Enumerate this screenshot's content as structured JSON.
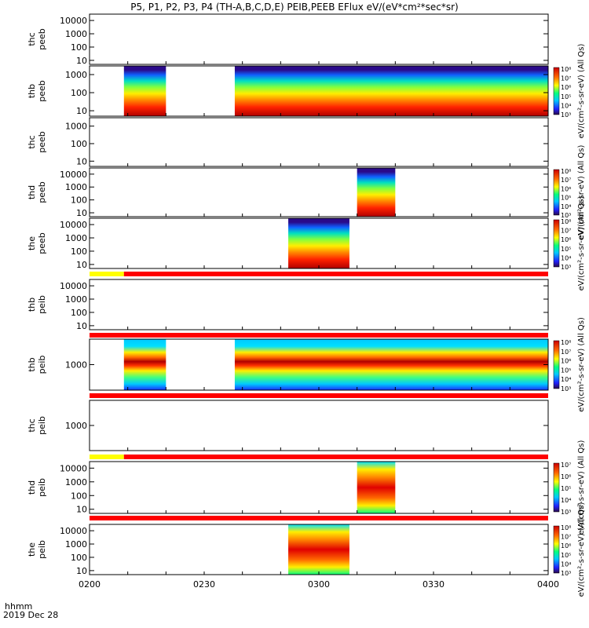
{
  "chart_data": {
    "type": "heatmap",
    "title": "P5, P1, P2, P3, P4 (TH-A,B,C,D,E) PEIB,PEEB EFlux eV/(eV*cm²*sec*sr)",
    "x_axis": {
      "label_line1": "hhmm",
      "label_line2": "2019 Dec 28",
      "range": [
        "0200",
        "0400"
      ],
      "ticks": [
        "0200",
        "0230",
        "0300",
        "0330",
        "0400"
      ]
    },
    "panels": [
      {
        "probe_label": "thc",
        "product_label": "peeb",
        "y_scale": "log",
        "y_ticks": [
          "10",
          "100",
          "1000",
          "10000"
        ],
        "data_intervals": [],
        "colorbar": null,
        "flag_bar": null
      },
      {
        "probe_label": "thb",
        "product_label": "peeb",
        "y_scale": "log",
        "y_ticks": [
          "10",
          "100",
          "1000"
        ],
        "data_intervals": [
          [
            "0209",
            "0220"
          ],
          [
            "0238",
            "0400"
          ]
        ],
        "colorbar": {
          "ticks": [
            "10³",
            "10⁴",
            "10⁵",
            "10⁶",
            "10⁷",
            "10⁸"
          ],
          "label": "eV/(cm²-s-sr-eV) (All Qs)"
        },
        "flag_bar": null
      },
      {
        "probe_label": "thc",
        "product_label": "peeb",
        "y_scale": "log",
        "y_ticks": [
          "10",
          "100",
          "1000"
        ],
        "data_intervals": [],
        "colorbar": null,
        "flag_bar": null
      },
      {
        "probe_label": "thd",
        "product_label": "peeb",
        "y_scale": "log",
        "y_ticks": [
          "10",
          "100",
          "1000",
          "10000"
        ],
        "data_intervals": [
          [
            "0310",
            "0320"
          ]
        ],
        "colorbar": {
          "ticks": [
            "10³",
            "10⁴",
            "10⁵",
            "10⁶",
            "10⁷",
            "10⁸"
          ],
          "label": "eV/(cm²-s-sr-eV) (All Qs)"
        },
        "flag_bar": null
      },
      {
        "probe_label": "the",
        "product_label": "peeb",
        "y_scale": "log",
        "y_ticks": [
          "10",
          "100",
          "1000",
          "10000"
        ],
        "data_intervals": [
          [
            "0252",
            "0308"
          ]
        ],
        "colorbar": {
          "ticks": [
            "10³",
            "10⁴",
            "10⁵",
            "10⁶",
            "10⁷",
            "10⁸"
          ],
          "label": "eV/(cm²-s-sr-eV) (All Qs)"
        },
        "flag_bar": {
          "segments": [
            {
              "from": "0200",
              "to": "0209",
              "color": "#ffff00"
            },
            {
              "from": "0209",
              "to": "0400",
              "color": "#ff0000"
            }
          ]
        }
      },
      {
        "probe_label": "thb",
        "product_label": "peib",
        "y_scale": "log",
        "y_ticks": [
          "10",
          "100",
          "1000",
          "10000"
        ],
        "data_intervals": [],
        "colorbar": null,
        "flag_bar": {
          "segments": [
            {
              "from": "0200",
              "to": "0400",
              "color": "#ff0000"
            }
          ]
        }
      },
      {
        "probe_label": "thb",
        "product_label": "peib",
        "y_scale": "log",
        "y_ticks": [
          "1000"
        ],
        "data_intervals": [
          [
            "0209",
            "0220"
          ],
          [
            "0238",
            "0400"
          ]
        ],
        "colorbar": {
          "ticks": [
            "10³",
            "10⁴",
            "10⁵",
            "10⁶",
            "10⁷",
            "10⁸"
          ],
          "label": "eV/(cm²-s-sr-eV) (All Qs)"
        },
        "flag_bar": {
          "segments": [
            {
              "from": "0200",
              "to": "0400",
              "color": "#ff0000"
            }
          ]
        }
      },
      {
        "probe_label": "thc",
        "product_label": "peib",
        "y_scale": "log",
        "y_ticks": [
          "1000"
        ],
        "data_intervals": [],
        "colorbar": null,
        "flag_bar": {
          "segments": [
            {
              "from": "0200",
              "to": "0209",
              "color": "#ffff00"
            },
            {
              "from": "0209",
              "to": "0400",
              "color": "#ff0000"
            }
          ]
        }
      },
      {
        "probe_label": "thd",
        "product_label": "peib",
        "y_scale": "log",
        "y_ticks": [
          "10",
          "100",
          "1000",
          "10000"
        ],
        "data_intervals": [
          [
            "0310",
            "0320"
          ]
        ],
        "colorbar": {
          "ticks": [
            "10³",
            "10⁴",
            "10⁵",
            "10⁶",
            "10⁷"
          ],
          "label": "eV/(cm²-s-sr-eV) (All Qs)"
        },
        "flag_bar": {
          "segments": [
            {
              "from": "0200",
              "to": "0400",
              "color": "#ff0000"
            }
          ]
        }
      },
      {
        "probe_label": "the",
        "product_label": "peib",
        "y_scale": "log",
        "y_ticks": [
          "10",
          "100",
          "1000",
          "10000"
        ],
        "data_intervals": [
          [
            "0252",
            "0308"
          ]
        ],
        "colorbar": {
          "ticks": [
            "10³",
            "10⁴",
            "10⁵",
            "10⁶",
            "10⁷",
            "10⁸"
          ],
          "label": "eV/(cm²-s-sr-eV) (All Qs)"
        },
        "flag_bar": null
      }
    ]
  }
}
